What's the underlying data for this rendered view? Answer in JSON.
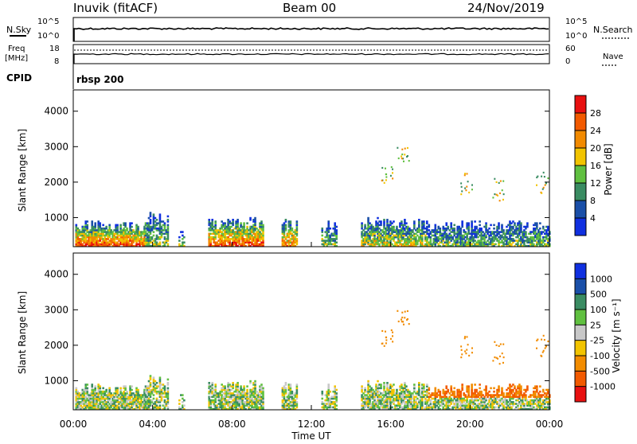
{
  "header": {
    "station": "Inuvik (fitACF)",
    "beam": "Beam 00",
    "date": "24/Nov/2019"
  },
  "small_panels": {
    "nsky_label": "N.Sky",
    "nsearch_label": "N.Search",
    "nsky_ticks": [
      "10^5",
      "10^0"
    ],
    "nsearch_ticks": [
      "10^5",
      "10^0"
    ],
    "freq_label_lines": [
      "Freq",
      "[MHz]"
    ],
    "freq_ticks": [
      "18",
      "8"
    ],
    "nave_label": "Nave",
    "nave_ticks": [
      "60",
      "0"
    ],
    "cpid_label": "CPID",
    "cpid_value": "rbsp 200"
  },
  "x_axis": {
    "label": "Time UT",
    "ticks": [
      "00:00",
      "04:00",
      "08:00",
      "12:00",
      "16:00",
      "20:00",
      "00:00"
    ]
  },
  "colors": {
    "power": [
      "#1030e0",
      "#1a4fa8",
      "#3a8c62",
      "#60c040",
      "#f2c400",
      "#f28a00",
      "#f25a00",
      "#e81010"
    ],
    "velocity": [
      "#e81010",
      "#f25a00",
      "#f28c00",
      "#f2c400",
      "#c8c8c8",
      "#60c040",
      "#3a8c62",
      "#1a4fa8",
      "#1030e0"
    ]
  },
  "chart_data": [
    {
      "type": "heatmap",
      "name": "power",
      "ylabel": "Slant Range [km]",
      "yticks": [
        1000,
        2000,
        3000,
        4000
      ],
      "ylim": [
        180,
        4600
      ],
      "xlim_hours": [
        0,
        24
      ],
      "colorbar_label": "Power [dB]",
      "colorbar_ticks": [
        "4",
        "8",
        "12",
        "16",
        "20",
        "24",
        "28"
      ]
    },
    {
      "type": "heatmap",
      "name": "velocity",
      "ylabel": "Slant Range [km]",
      "yticks": [
        1000,
        2000,
        3000,
        4000
      ],
      "ylim": [
        180,
        4600
      ],
      "xlim_hours": [
        0,
        24
      ],
      "colorbar_label": "Velocity [m s⁻¹]",
      "colorbar_ticks": [
        "1000",
        "500",
        "100",
        "25",
        "-25",
        "-100",
        "-500",
        "-1000"
      ]
    }
  ]
}
